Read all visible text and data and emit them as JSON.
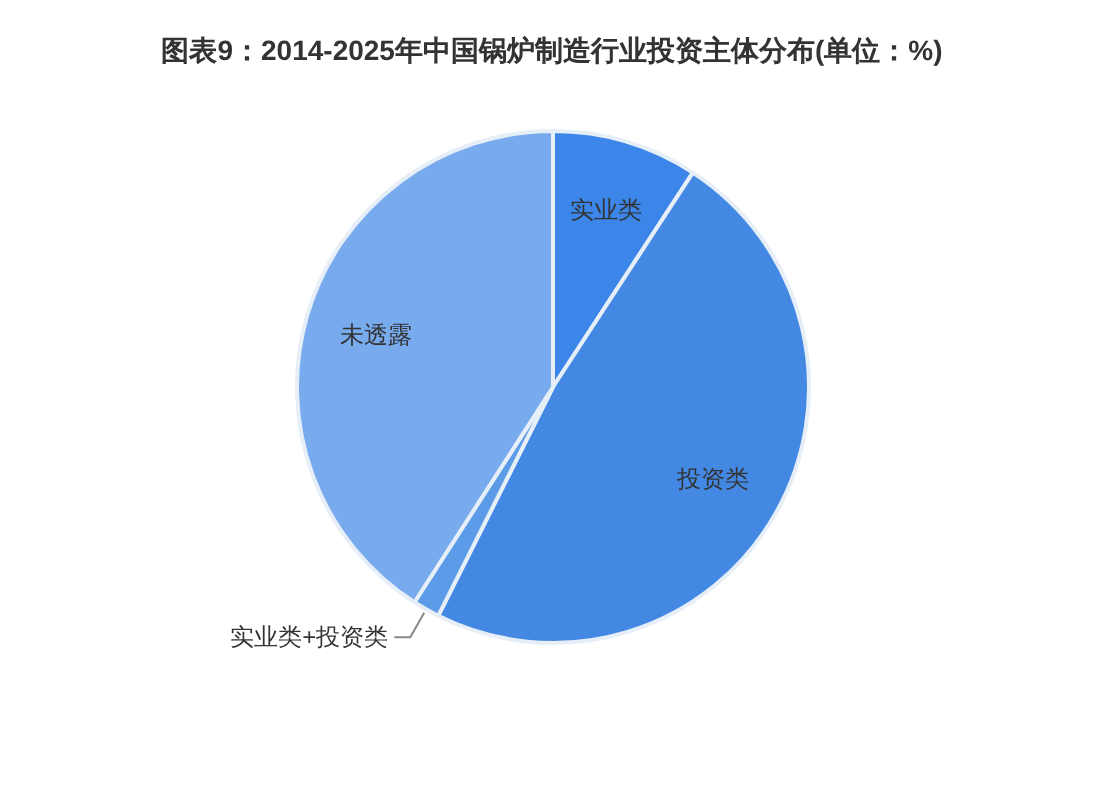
{
  "chart_data": {
    "type": "pie",
    "title": "图表9：2014-2025年中国锅炉制造行业投资主体分布(单位：%)",
    "categories": [
      "实业类",
      "投资类",
      "实业类+投资类",
      "未透露"
    ],
    "values": [
      9.2,
      48.2,
      1.7,
      40.9
    ],
    "colors": [
      "#3b86e8",
      "#4389e3",
      "#5c9be8",
      "#78aaee"
    ]
  }
}
